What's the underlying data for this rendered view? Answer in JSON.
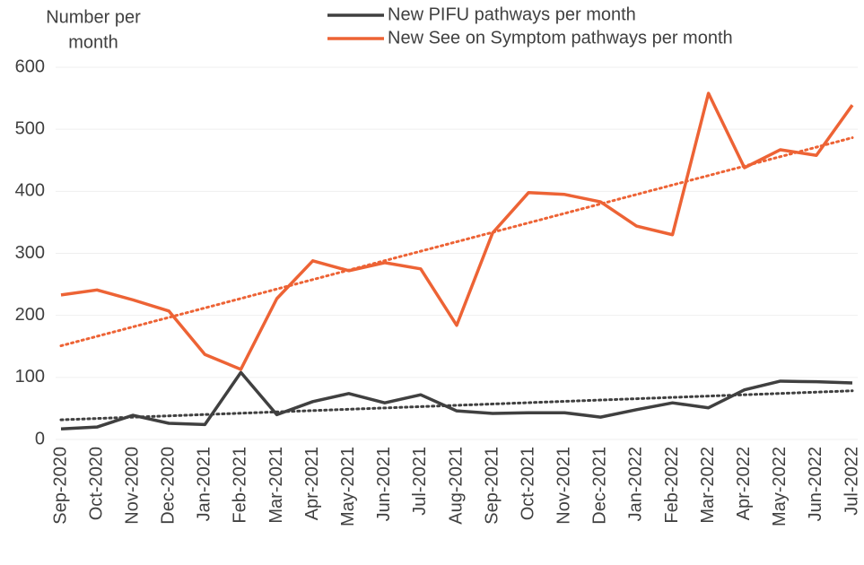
{
  "chart_data": {
    "type": "line",
    "y_label": [
      "Number per",
      "month"
    ],
    "categories": [
      "Sep-2020",
      "Oct-2020",
      "Nov-2020",
      "Dec-2020",
      "Jan-2021",
      "Feb-2021",
      "Mar-2021",
      "Apr-2021",
      "May-2021",
      "Jun-2021",
      "Jul-2021",
      "Aug-2021",
      "Sep-2021",
      "Oct-2021",
      "Nov-2021",
      "Dec-2021",
      "Jan-2022",
      "Feb-2022",
      "Mar-2022",
      "Apr-2022",
      "May-2022",
      "Jun-2022",
      "Jul-2022"
    ],
    "series": [
      {
        "name": "New PIFU pathways per month",
        "color": "#404040",
        "values": [
          17,
          20,
          39,
          26,
          24,
          108,
          40,
          61,
          74,
          59,
          72,
          46,
          42,
          43,
          43,
          36,
          48,
          59,
          51,
          80,
          94,
          93,
          91
        ]
      },
      {
        "name": "New See on Symptom pathways per month",
        "color": "#ed6335",
        "values": [
          233,
          241,
          225,
          207,
          137,
          113,
          227,
          288,
          272,
          285,
          275,
          184,
          333,
          398,
          395,
          383,
          344,
          330,
          558,
          438,
          467,
          458,
          539
        ]
      }
    ],
    "ylim": [
      0,
      600
    ],
    "yticks": [
      0,
      100,
      200,
      300,
      400,
      500,
      600
    ],
    "grid": true,
    "trendline": true
  }
}
